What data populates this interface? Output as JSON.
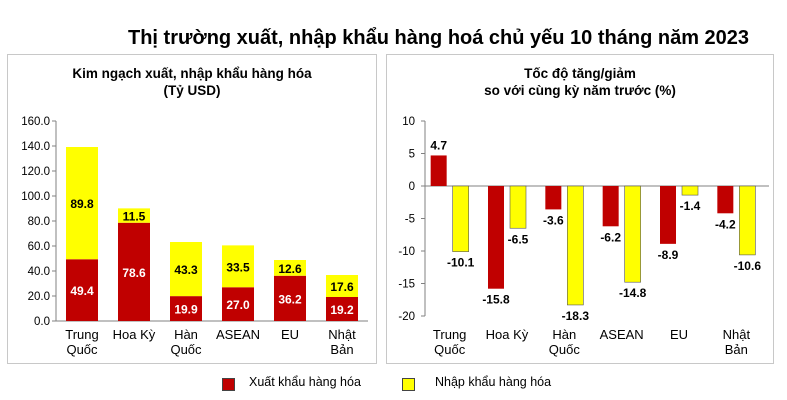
{
  "title": "Thị trường xuất, nhập khẩu hàng hoá chủ yếu 10 tháng năm 2023",
  "colors": {
    "export": "#c00000",
    "import": "#ffff00",
    "axis": "#808080",
    "grid": "#d9d9d9"
  },
  "legend": {
    "export": "Xuất khẩu hàng hóa",
    "import": "Nhập khẩu hàng hóa"
  },
  "chart_data": [
    {
      "type": "bar",
      "stacked": true,
      "title_line1": "Kim ngạch xuất, nhập khẩu hàng hóa",
      "title_line2": "(Tỷ USD)",
      "categories": [
        [
          "Trung",
          "Quốc"
        ],
        [
          "Hoa Kỳ",
          ""
        ],
        [
          "Hàn",
          "Quốc"
        ],
        [
          "ASEAN",
          ""
        ],
        [
          "EU",
          ""
        ],
        [
          "Nhật",
          "Bản"
        ]
      ],
      "series": [
        {
          "name": "Xuất khẩu hàng hóa",
          "values": [
            49.4,
            78.6,
            19.9,
            27.0,
            36.2,
            19.2
          ]
        },
        {
          "name": "Nhập khẩu hàng hóa",
          "values": [
            89.8,
            11.5,
            43.3,
            33.5,
            12.6,
            17.6
          ]
        }
      ],
      "ylim": [
        0,
        160
      ],
      "yticks": [
        "0.0",
        "20.0",
        "40.0",
        "60.0",
        "80.0",
        "100.0",
        "120.0",
        "140.0",
        "160.0"
      ],
      "grid": false
    },
    {
      "type": "bar",
      "stacked": false,
      "title_line1": "Tốc độ tăng/giảm",
      "title_line2": "so với cùng kỳ năm trước (%)",
      "categories": [
        [
          "Trung",
          "Quốc"
        ],
        [
          "Hoa Kỳ",
          ""
        ],
        [
          "Hàn",
          "Quốc"
        ],
        [
          "ASEAN",
          ""
        ],
        [
          "EU",
          ""
        ],
        [
          "Nhật",
          "Bản"
        ]
      ],
      "series": [
        {
          "name": "Xuất khẩu hàng hóa",
          "values": [
            4.7,
            -15.8,
            -3.6,
            -6.2,
            -8.9,
            -4.2
          ]
        },
        {
          "name": "Nhập khẩu hàng hóa",
          "values": [
            -10.1,
            -6.5,
            -18.3,
            -14.8,
            -1.4,
            -10.6
          ]
        }
      ],
      "ylim": [
        -20,
        10
      ],
      "yticks": [
        "-20",
        "-15",
        "-10",
        "-5",
        "0",
        "5",
        "10"
      ],
      "grid": false
    }
  ]
}
